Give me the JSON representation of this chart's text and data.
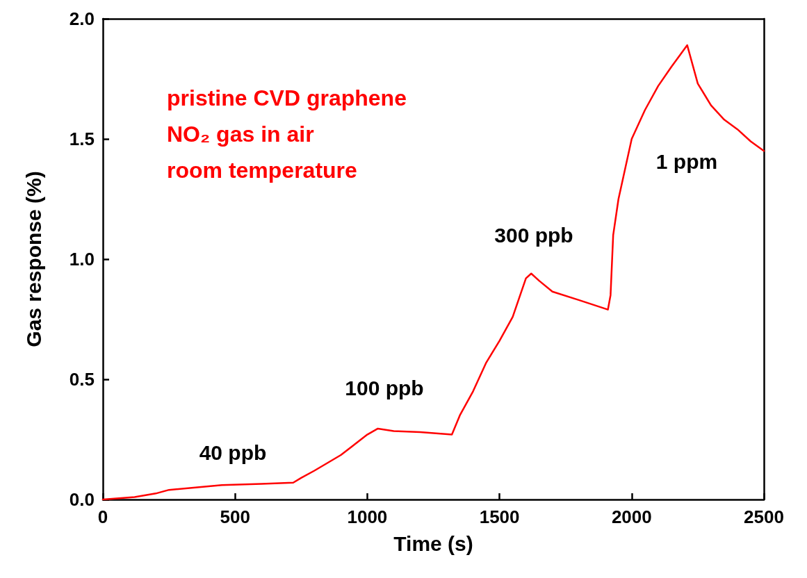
{
  "chart_data": {
    "type": "line",
    "xlabel": "Time (s)",
    "ylabel": "Gas response (%)",
    "xlim": [
      0,
      2500
    ],
    "xticks": [
      0,
      500,
      1000,
      1500,
      2000,
      2500
    ],
    "ylim": [
      0,
      2.0
    ],
    "yticks": [
      {
        "value": 0,
        "label": "0.0"
      },
      {
        "value": 0.5,
        "label": "0.5"
      },
      {
        "value": 1,
        "label": "1.0"
      },
      {
        "value": 1.5,
        "label": "1.5"
      },
      {
        "value": 2,
        "label": "2.0"
      }
    ],
    "grid": false,
    "marker": "none",
    "line_style": "solid",
    "series": [
      {
        "color": "#ff0000",
        "x": [
          0,
          120,
          200,
          250,
          350,
          450,
          600,
          720,
          750,
          800,
          900,
          1000,
          1040,
          1100,
          1200,
          1320,
          1350,
          1400,
          1450,
          1500,
          1550,
          1600,
          1620,
          1650,
          1700,
          1800,
          1910,
          1920,
          1930,
          1950,
          2000,
          2050,
          2100,
          2150,
          2210,
          2250,
          2300,
          2350,
          2400,
          2450,
          2500
        ],
        "values": [
          0.0,
          0.01,
          0.025,
          0.04,
          0.05,
          0.06,
          0.065,
          0.07,
          0.09,
          0.12,
          0.185,
          0.27,
          0.295,
          0.285,
          0.28,
          0.27,
          0.35,
          0.45,
          0.57,
          0.66,
          0.76,
          0.92,
          0.94,
          0.91,
          0.865,
          0.83,
          0.79,
          0.85,
          1.1,
          1.25,
          1.5,
          1.62,
          1.72,
          1.8,
          1.89,
          1.73,
          1.64,
          1.58,
          1.54,
          1.49,
          1.45
        ]
      }
    ],
    "annotations": [
      "pristine CVD graphene",
      "NO₂ gas in air",
      "room temperature",
      "40 ppb",
      "100 ppb",
      "300 ppb",
      "1 ppm"
    ]
  }
}
